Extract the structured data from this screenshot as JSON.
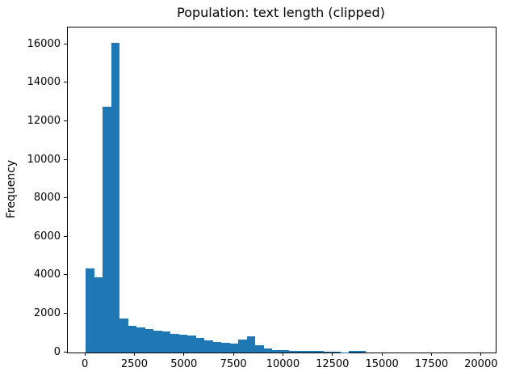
{
  "chart_data": {
    "type": "bar",
    "subtype": "histogram",
    "title": "Population: text length (clipped)",
    "xlabel": "",
    "ylabel": "Frequency",
    "bar_color": "#1f77b4",
    "background_color": "#ffffff",
    "grid": false,
    "legend_position": "none",
    "bin_start": 0,
    "bin_width": 428.57,
    "values": [
      4380,
      3930,
      12800,
      16100,
      1755,
      1380,
      1300,
      1230,
      1125,
      1080,
      980,
      940,
      870,
      745,
      640,
      560,
      505,
      460,
      680,
      840,
      380,
      210,
      126,
      126,
      100,
      84,
      72,
      70,
      60,
      50,
      10,
      90,
      80,
      0,
      0
    ],
    "x_ticks": [
      0,
      2500,
      5000,
      7500,
      10000,
      12500,
      15000,
      17500,
      20000
    ],
    "y_ticks": [
      0,
      2000,
      4000,
      6000,
      8000,
      10000,
      12000,
      14000,
      16000
    ],
    "xlim": [
      -900,
      20700
    ],
    "ylim": [
      0,
      16900
    ]
  }
}
